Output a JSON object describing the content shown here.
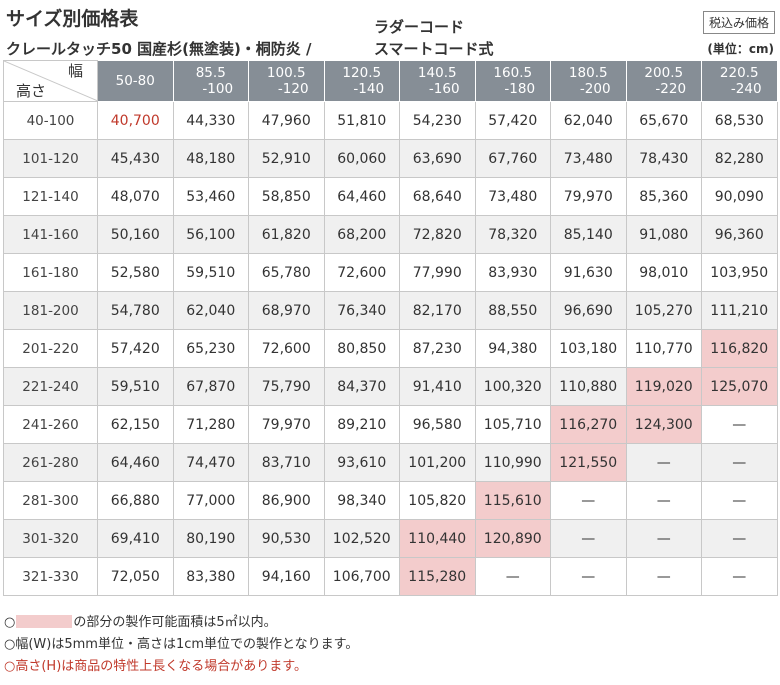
{
  "header": {
    "title": "サイズ別価格表",
    "subtitle_line1": "クレールタッチ50 国産杉(無塗装)・桐防炎 /",
    "subtitle_right_line1": "ラダーコード",
    "subtitle_right_line2": "スマートコード式",
    "tax_badge": "税込み価格",
    "unit": "(単位：cm)"
  },
  "table": {
    "corner_width_label": "幅",
    "corner_height_label": "高さ",
    "width_headers": [
      [
        "50-80",
        ""
      ],
      [
        "85.5",
        "-100"
      ],
      [
        "100.5",
        "-120"
      ],
      [
        "120.5",
        "-140"
      ],
      [
        "140.5",
        "-160"
      ],
      [
        "160.5",
        "-180"
      ],
      [
        "180.5",
        "-200"
      ],
      [
        "200.5",
        "-220"
      ],
      [
        "220.5",
        "-240"
      ]
    ],
    "rows": [
      {
        "height": "40-100",
        "prices": [
          "40,700",
          "44,330",
          "47,960",
          "51,810",
          "54,230",
          "57,420",
          "62,040",
          "65,670",
          "68,530"
        ]
      },
      {
        "height": "101-120",
        "prices": [
          "45,430",
          "48,180",
          "52,910",
          "60,060",
          "63,690",
          "67,760",
          "73,480",
          "78,430",
          "82,280"
        ]
      },
      {
        "height": "121-140",
        "prices": [
          "48,070",
          "53,460",
          "58,850",
          "64,460",
          "68,640",
          "73,480",
          "79,970",
          "85,360",
          "90,090"
        ]
      },
      {
        "height": "141-160",
        "prices": [
          "50,160",
          "56,100",
          "61,820",
          "68,200",
          "72,820",
          "78,320",
          "85,140",
          "91,080",
          "96,360"
        ]
      },
      {
        "height": "161-180",
        "prices": [
          "52,580",
          "59,510",
          "65,780",
          "72,600",
          "77,990",
          "83,930",
          "91,630",
          "98,010",
          "103,950"
        ]
      },
      {
        "height": "181-200",
        "prices": [
          "54,780",
          "62,040",
          "68,970",
          "76,340",
          "82,170",
          "88,550",
          "96,690",
          "105,270",
          "111,210"
        ]
      },
      {
        "height": "201-220",
        "prices": [
          "57,420",
          "65,230",
          "72,600",
          "80,850",
          "87,230",
          "94,380",
          "103,180",
          "110,770",
          "116,820"
        ]
      },
      {
        "height": "221-240",
        "prices": [
          "59,510",
          "67,870",
          "75,790",
          "84,370",
          "91,410",
          "100,320",
          "110,880",
          "119,020",
          "125,070"
        ]
      },
      {
        "height": "241-260",
        "prices": [
          "62,150",
          "71,280",
          "79,970",
          "89,210",
          "96,580",
          "105,710",
          "116,270",
          "124,300",
          "—"
        ]
      },
      {
        "height": "261-280",
        "prices": [
          "64,460",
          "74,470",
          "83,710",
          "93,610",
          "101,200",
          "110,990",
          "121,550",
          "—",
          "—"
        ]
      },
      {
        "height": "281-300",
        "prices": [
          "66,880",
          "77,000",
          "86,900",
          "98,340",
          "105,820",
          "115,610",
          "—",
          "—",
          "—"
        ]
      },
      {
        "height": "301-320",
        "prices": [
          "69,410",
          "80,190",
          "90,530",
          "102,520",
          "110,440",
          "120,890",
          "—",
          "—",
          "—"
        ]
      },
      {
        "height": "321-330",
        "prices": [
          "72,050",
          "83,380",
          "94,160",
          "106,700",
          "115,280",
          "—",
          "—",
          "—",
          "—"
        ]
      }
    ],
    "highlighted_cells": [
      [
        6,
        8
      ],
      [
        7,
        7
      ],
      [
        7,
        8
      ],
      [
        8,
        6
      ],
      [
        8,
        7
      ],
      [
        9,
        6
      ],
      [
        10,
        5
      ],
      [
        11,
        4
      ],
      [
        11,
        5
      ],
      [
        12,
        4
      ]
    ],
    "red_cells": [
      [
        0,
        0
      ]
    ]
  },
  "notes": {
    "note1_prefix": "○",
    "note1_suffix": "の部分の製作可能面積は5㎡以内。",
    "note2": "○幅(W)は5mm単位・高さは1cm単位での製作となります。",
    "note3": "○高さ(H)は商品の特性上長くなる場合があります。"
  },
  "colors": {
    "header_bg": "#868e96",
    "highlight": "#f3cccc",
    "red_text": "#c0392b",
    "stripe": "#f0f0f0"
  }
}
